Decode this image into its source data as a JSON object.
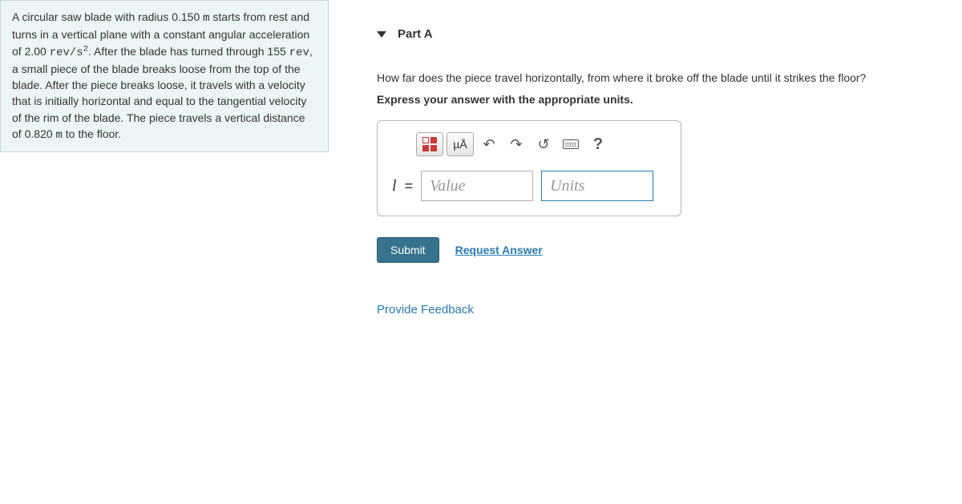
{
  "problem": {
    "text_parts": [
      "A circular saw blade with radius 0.150 ",
      "m",
      " starts from rest and turns in a vertical plane with a constant angular acceleration of 2.00 ",
      "rev/s",
      ". After the blade has turned through 155 ",
      "rev",
      ", a small piece of the blade breaks loose from the top of the blade. After the piece breaks loose, it travels with a velocity that is initially horizontal and equal to the tangential velocity of the rim of the blade. The piece travels a vertical distance of 0.820 ",
      "m",
      " to the floor."
    ],
    "exponent": "2"
  },
  "part": {
    "label": "Part A",
    "question": "How far does the piece travel horizontally, from where it broke off the blade until it strikes the floor?",
    "instruction": "Express your answer with the appropriate units."
  },
  "answer": {
    "variable": "l",
    "equals": "=",
    "value_placeholder": "Value",
    "units_placeholder": "Units"
  },
  "toolbar": {
    "units_symbol": "µÅ",
    "undo": "↶",
    "redo": "↷",
    "reset": "↺",
    "help": "?"
  },
  "actions": {
    "submit": "Submit",
    "request_answer": "Request Answer",
    "provide_feedback": "Provide Feedback"
  }
}
